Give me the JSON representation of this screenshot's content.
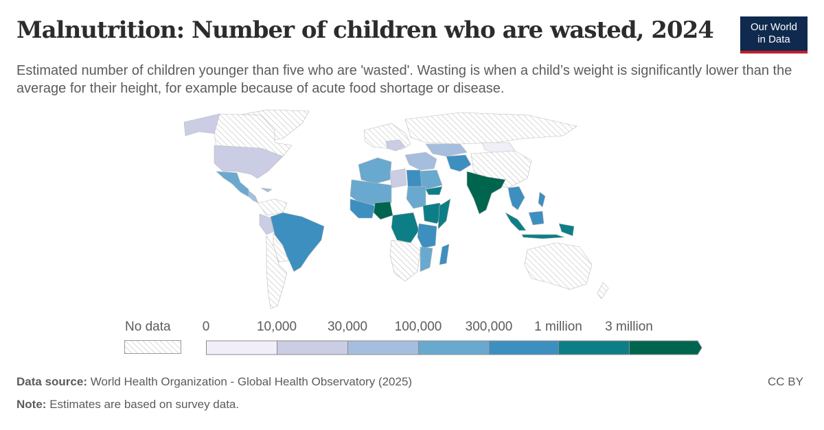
{
  "header": {
    "title": "Malnutrition: Number of children who are wasted, 2024",
    "subtitle": "Estimated number of children younger than five who are 'wasted'. Wasting is when a child’s weight is significantly lower than the average for their height, for example because of acute food shortage or disease."
  },
  "logo": {
    "line1": "Our World",
    "line2": "in Data"
  },
  "legend": {
    "no_data_label": "No data",
    "ticks": [
      "0",
      "10,000",
      "30,000",
      "100,000",
      "300,000",
      "1 million",
      "3 million"
    ],
    "colors": [
      "#f2eef7",
      "#cacde4",
      "#a6bedd",
      "#6aa9cf",
      "#3d8fc0",
      "#0e7e86",
      "#00654f"
    ]
  },
  "footer": {
    "source_label": "Data source:",
    "source_text": "World Health Organization - Global Health Observatory (2025)",
    "note_label": "Note:",
    "note_text": "Estimates are based on survey data.",
    "license": "CC BY"
  }
}
